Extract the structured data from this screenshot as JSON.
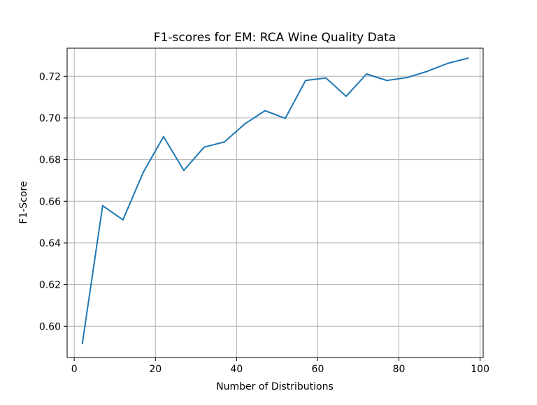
{
  "chart_data": {
    "type": "line",
    "title": "F1-scores for EM: RCA Wine Quality Data",
    "xlabel": "Number of Distributions",
    "ylabel": "F1-Score",
    "xlim": [
      -1.75,
      100.75
    ],
    "ylim": [
      0.585,
      0.7335
    ],
    "x_ticks": [
      0,
      20,
      40,
      60,
      80,
      100
    ],
    "y_ticks": [
      0.6,
      0.62,
      0.64,
      0.66,
      0.68,
      0.7,
      0.72
    ],
    "x_tick_labels": [
      "0",
      "20",
      "40",
      "60",
      "80",
      "100"
    ],
    "y_tick_labels": [
      "0.60",
      "0.62",
      "0.64",
      "0.66",
      "0.68",
      "0.70",
      "0.72"
    ],
    "grid": true,
    "series": [
      {
        "color": "#1f77b4",
        "x": [
          2,
          7,
          12,
          17,
          22,
          27,
          32,
          37,
          42,
          47,
          52,
          57,
          62,
          67,
          72,
          77,
          82,
          87,
          92,
          97
        ],
        "y": [
          0.5917,
          0.6579,
          0.6511,
          0.6739,
          0.691,
          0.6748,
          0.686,
          0.6885,
          0.6971,
          0.7035,
          0.6998,
          0.718,
          0.7192,
          0.7104,
          0.7211,
          0.718,
          0.7194,
          0.7224,
          0.7262,
          0.7287
        ]
      }
    ]
  }
}
